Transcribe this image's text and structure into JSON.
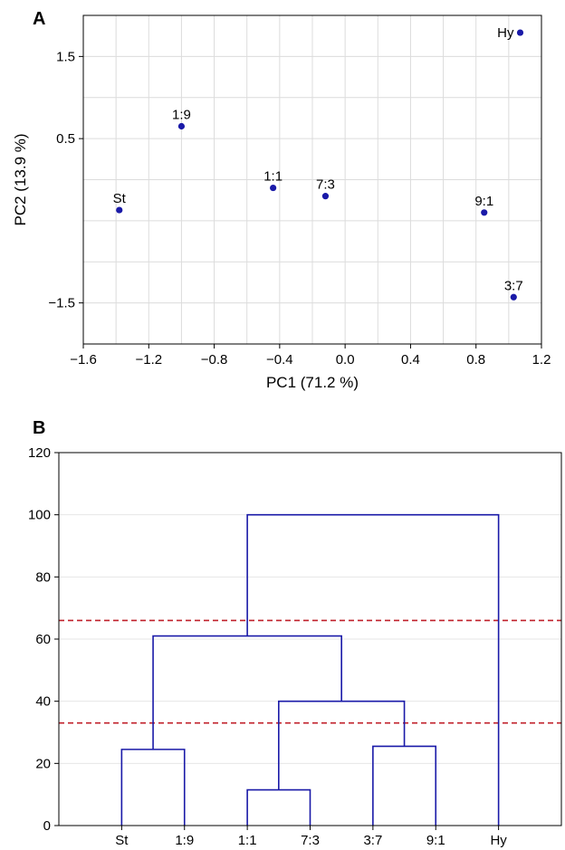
{
  "chart_data": [
    {
      "type": "scatter",
      "panel_label": "A",
      "xlabel": "PC1 (71.2 %)",
      "ylabel": "PC2 (13.9 %)",
      "xlim": [
        -1.6,
        1.2
      ],
      "ylim": [
        -2.0,
        2.0
      ],
      "xticks": [
        -1.6,
        -1.2,
        -0.8,
        -0.4,
        0.0,
        0.4,
        0.8,
        1.2
      ],
      "xtick_labels": [
        "−1.6",
        "−1.2",
        "−0.8",
        "−0.4",
        "0.0",
        "0.4",
        "0.8",
        "1.2"
      ],
      "yticks": [
        -1.5,
        0.5,
        1.5
      ],
      "ytick_labels": [
        "−1.5",
        "0.5",
        "1.5"
      ],
      "grid": true,
      "point_color": "#1a1aa8",
      "points": [
        {
          "label": "St",
          "x": -1.38,
          "y": -0.37
        },
        {
          "label": "1:9",
          "x": -1.0,
          "y": 0.65
        },
        {
          "label": "1:1",
          "x": -0.44,
          "y": -0.1
        },
        {
          "label": "7:3",
          "x": -0.12,
          "y": -0.2
        },
        {
          "label": "9:1",
          "x": 0.85,
          "y": -0.4
        },
        {
          "label": "3:7",
          "x": 1.03,
          "y": -1.43
        },
        {
          "label": "Hy",
          "x": 1.07,
          "y": 1.79
        }
      ]
    },
    {
      "type": "dendrogram",
      "panel_label": "B",
      "ylim": [
        0,
        120
      ],
      "yticks": [
        0,
        20,
        40,
        60,
        80,
        100,
        120
      ],
      "ytick_labels": [
        "0",
        "20",
        "40",
        "60",
        "80",
        "100",
        "120"
      ],
      "leaves": [
        "St",
        "1:9",
        "1:1",
        "7:3",
        "3:7",
        "9:1",
        "Hy"
      ],
      "link_color": "#1a1aa8",
      "cut_line_color": "#c0202a",
      "cut_lines": [
        66,
        33
      ],
      "merges": [
        {
          "left": "leaf:1:1",
          "right": "leaf:7:3",
          "height": 11.5
        },
        {
          "left": "leaf:St",
          "right": "leaf:1:9",
          "height": 24.5
        },
        {
          "left": "leaf:3:7",
          "right": "leaf:9:1",
          "height": 25.5
        },
        {
          "left": "node:0",
          "right": "node:2",
          "height": 40
        },
        {
          "left": "node:1",
          "right": "node:3",
          "height": 61
        },
        {
          "left": "node:4",
          "right": "leaf:Hy",
          "height": 100
        }
      ]
    }
  ]
}
